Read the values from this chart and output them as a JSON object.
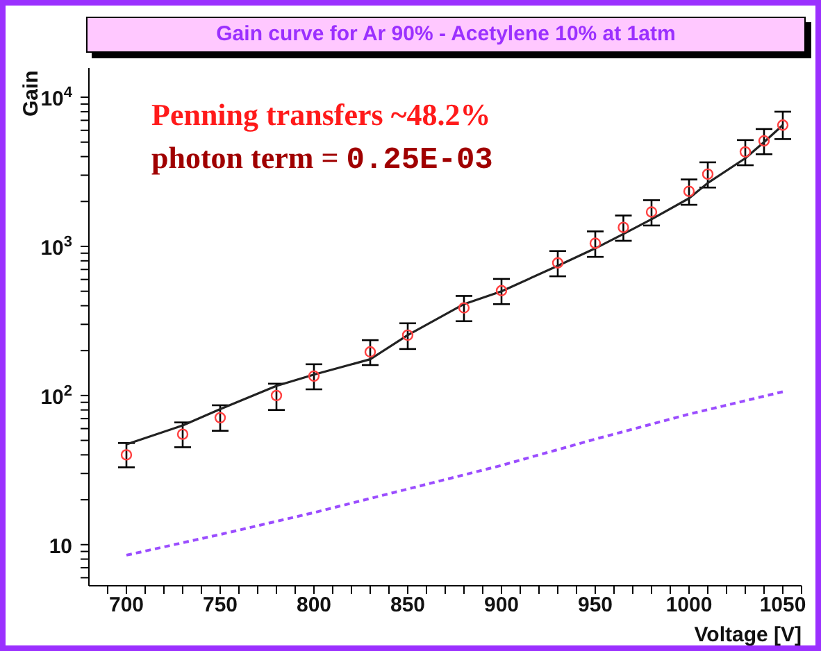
{
  "chart_data": {
    "type": "scatter",
    "title": "Gain curve for Ar 90% - Acetylene 10% at 1atm",
    "xlabel": "Voltage [V]",
    "ylabel": "Gain",
    "annotations": [
      "Penning transfers ~48.2%",
      "photon term = 0.25E-03"
    ],
    "series": [
      {
        "color": "#ff4040",
        "marker": "circle",
        "x": [
          700,
          730,
          750,
          780,
          800,
          830,
          850,
          880,
          900,
          930,
          950,
          965,
          980,
          1000,
          1010,
          1030,
          1040,
          1050
        ],
        "values": [
          40,
          55,
          71,
          100,
          135,
          196,
          254,
          387,
          505,
          775,
          1050,
          1340,
          1700,
          2340,
          3050,
          4300,
          5100,
          6500
        ],
        "errors": [
          [
            33,
            48
          ],
          [
            45,
            66
          ],
          [
            58,
            86
          ],
          [
            80,
            120
          ],
          [
            110,
            162
          ],
          [
            160,
            235
          ],
          [
            205,
            305
          ],
          [
            315,
            465
          ],
          [
            410,
            605
          ],
          [
            630,
            930
          ],
          [
            850,
            1260
          ],
          [
            1090,
            1610
          ],
          [
            1380,
            2040
          ],
          [
            1900,
            2810
          ],
          [
            2480,
            3660
          ],
          [
            3500,
            5160
          ],
          [
            4150,
            6120
          ],
          [
            5240,
            8000
          ]
        ]
      },
      {
        "type": "line",
        "color": "#222222",
        "marker": "none",
        "line_style": "solid",
        "x": [
          700,
          730,
          750,
          780,
          800,
          830,
          850,
          880,
          900,
          930,
          950,
          965,
          980,
          1000,
          1010,
          1030,
          1040,
          1050
        ],
        "values": [
          47,
          63,
          81,
          116,
          138,
          175,
          254,
          410,
          500,
          740,
          970,
          1210,
          1520,
          2100,
          2660,
          3900,
          5000,
          6500
        ]
      },
      {
        "type": "line",
        "color": "#9b4dff",
        "marker": "none",
        "line_style": "dashed",
        "x": [
          700,
          750,
          800,
          850,
          900,
          950,
          1000,
          1050
        ],
        "values": [
          8.5,
          11.7,
          16.4,
          23.6,
          34,
          51,
          75,
          106
        ]
      }
    ],
    "log": "y",
    "xlim": [
      680,
      1060
    ],
    "ylim": [
      5.3,
      15700
    ],
    "xticks": [
      {
        "value": 690,
        "label": null
      },
      700,
      {
        "value": 710,
        "label": null
      },
      {
        "value": 720,
        "label": null
      },
      {
        "value": 730,
        "label": null
      },
      {
        "value": 740,
        "label": null
      },
      750,
      {
        "value": 760,
        "label": null
      },
      {
        "value": 770,
        "label": null
      },
      {
        "value": 780,
        "label": null
      },
      {
        "value": 790,
        "label": null
      },
      800,
      {
        "value": 810,
        "label": null
      },
      {
        "value": 820,
        "label": null
      },
      {
        "value": 830,
        "label": null
      },
      {
        "value": 840,
        "label": null
      },
      850,
      {
        "value": 860,
        "label": null
      },
      {
        "value": 870,
        "label": null
      },
      {
        "value": 880,
        "label": null
      },
      {
        "value": 890,
        "label": null
      },
      900,
      {
        "value": 910,
        "label": null
      },
      {
        "value": 920,
        "label": null
      },
      {
        "value": 930,
        "label": null
      },
      {
        "value": 940,
        "label": null
      },
      950,
      {
        "value": 960,
        "label": null
      },
      {
        "value": 970,
        "label": null
      },
      {
        "value": 980,
        "label": null
      },
      {
        "value": 990,
        "label": null
      },
      1000,
      {
        "value": 1010,
        "label": null
      },
      {
        "value": 1020,
        "label": null
      },
      {
        "value": 1030,
        "label": null
      },
      {
        "value": 1040,
        "label": null
      },
      1050,
      {
        "value": 1060,
        "label": null
      }
    ],
    "yticks": [
      {
        "value": 6,
        "label": null
      },
      {
        "value": 7,
        "label": null
      },
      {
        "value": 8,
        "label": null
      },
      {
        "value": 9,
        "label": null
      },
      10,
      {
        "value": 20,
        "label": null
      },
      {
        "value": 30,
        "label": null
      },
      {
        "value": 40,
        "label": null
      },
      {
        "value": 50,
        "label": null
      },
      {
        "value": 60,
        "label": null
      },
      {
        "value": 70,
        "label": null
      },
      {
        "value": 80,
        "label": null
      },
      {
        "value": 90,
        "label": null
      },
      {
        "value": 100,
        "label": "10$^{2}$"
      },
      {
        "value": 200,
        "label": null
      },
      {
        "value": 300,
        "label": null
      },
      {
        "value": 400,
        "label": null
      },
      {
        "value": 500,
        "label": null
      },
      {
        "value": 600,
        "label": null
      },
      {
        "value": 700,
        "label": null
      },
      {
        "value": 800,
        "label": null
      },
      {
        "value": 900,
        "label": null
      },
      {
        "value": 1000,
        "label": "10$^{3}$"
      },
      {
        "value": 2000,
        "label": null
      },
      {
        "value": 3000,
        "label": null
      },
      {
        "value": 4000,
        "label": null
      },
      {
        "value": 5000,
        "label": null
      },
      {
        "value": 6000,
        "label": null
      },
      {
        "value": 7000,
        "label": null
      },
      {
        "value": 8000,
        "label": null
      },
      {
        "value": 9000,
        "label": null
      },
      {
        "value": 10000,
        "label": "10$^{4}$"
      }
    ],
    "grid": false
  }
}
